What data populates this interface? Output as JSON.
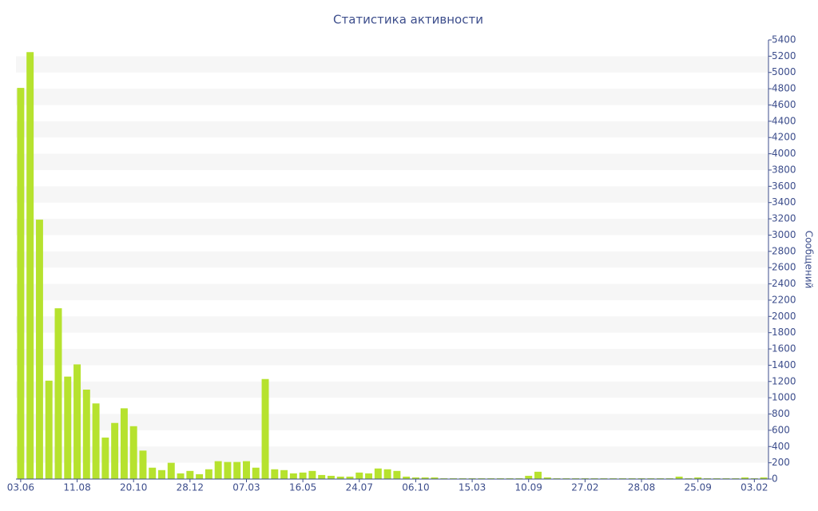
{
  "chart_data": {
    "type": "bar",
    "title": "Статистика активности",
    "y_label": "Сообщений",
    "color": "#b6e22e",
    "ylim": [
      0,
      5400
    ],
    "yticks": [
      0,
      200,
      400,
      600,
      800,
      1000,
      1200,
      1400,
      1600,
      1800,
      2000,
      2200,
      2400,
      2600,
      2800,
      3000,
      3200,
      3400,
      3600,
      3800,
      4000,
      4200,
      4400,
      4600,
      4800,
      5000,
      5200,
      5400
    ],
    "grid": true,
    "categories": [
      "03.06",
      null,
      null,
      null,
      null,
      null,
      "11.08",
      null,
      null,
      null,
      null,
      null,
      "20.10",
      null,
      null,
      null,
      null,
      null,
      "28.12",
      null,
      null,
      null,
      null,
      null,
      "07.03",
      null,
      null,
      null,
      null,
      null,
      "16.05",
      null,
      null,
      null,
      null,
      null,
      "24.07",
      null,
      null,
      null,
      null,
      null,
      "06.10",
      null,
      null,
      null,
      null,
      null,
      "15.03",
      null,
      null,
      null,
      null,
      null,
      "10.09",
      null,
      null,
      null,
      null,
      null,
      "27.02",
      null,
      null,
      null,
      null,
      null,
      "28.08",
      null,
      null,
      null,
      null,
      null,
      "25.09",
      null,
      null,
      null,
      null,
      null,
      "03.02",
      null
    ],
    "values": [
      4810,
      5250,
      3190,
      1210,
      2100,
      1260,
      1410,
      1100,
      930,
      510,
      690,
      870,
      650,
      350,
      140,
      110,
      200,
      70,
      100,
      60,
      120,
      220,
      210,
      210,
      220,
      140,
      1230,
      120,
      110,
      70,
      80,
      100,
      50,
      40,
      30,
      30,
      80,
      70,
      130,
      120,
      100,
      30,
      20,
      20,
      20,
      10,
      10,
      10,
      10,
      10,
      10,
      10,
      10,
      10,
      40,
      90,
      20,
      10,
      10,
      10,
      10,
      10,
      10,
      10,
      10,
      10,
      10,
      10,
      10,
      10,
      30,
      10,
      20,
      10,
      10,
      10,
      10,
      20,
      10,
      20
    ]
  }
}
